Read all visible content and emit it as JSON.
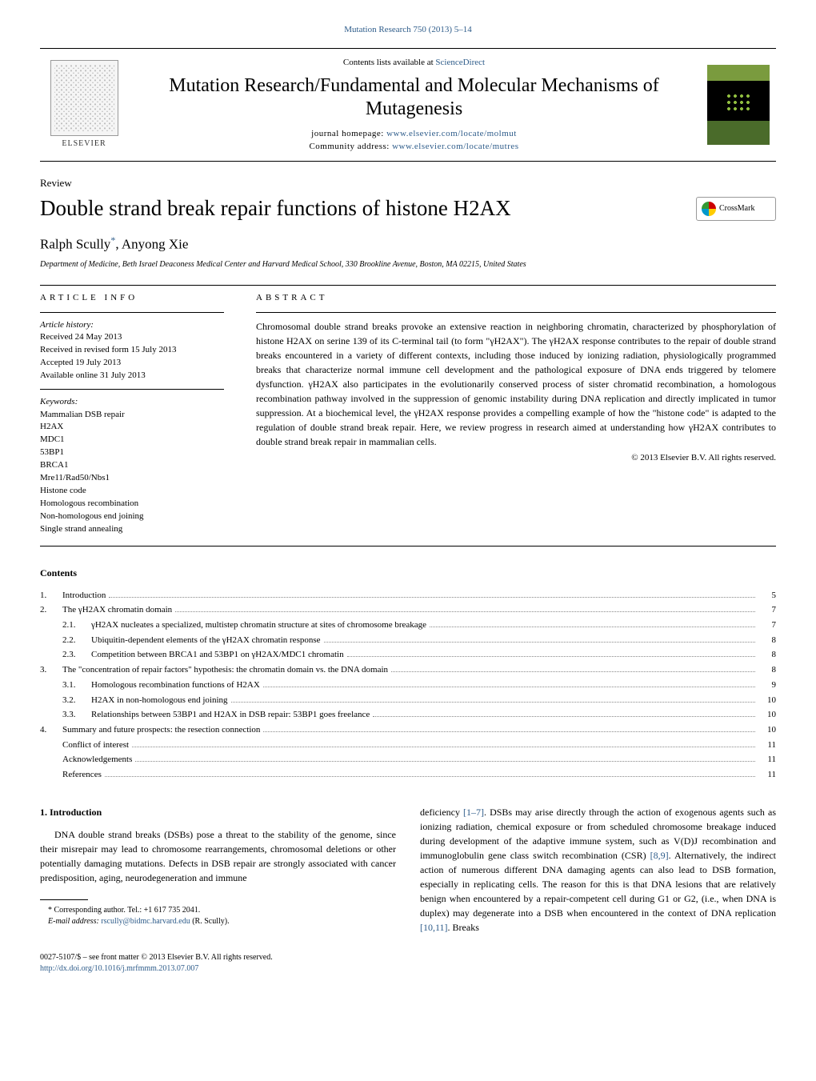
{
  "journal_ref": "Mutation Research 750 (2013) 5–14",
  "header": {
    "contents_available": "Contents lists available at",
    "sciencedirect": "ScienceDirect",
    "journal_title": "Mutation Research/Fundamental and Molecular Mechanisms of Mutagenesis",
    "homepage_label": "journal homepage:",
    "homepage_url": "www.elsevier.com/locate/molmut",
    "community_label": "Community address:",
    "community_url": "www.elsevier.com/locate/mutres",
    "publisher": "ELSEVIER"
  },
  "article_type": "Review",
  "title": "Double strand break repair functions of histone H2AX",
  "crossmark": "CrossMark",
  "authors": "Ralph Scully",
  "author2": ", Anyong Xie",
  "affiliation": "Department of Medicine, Beth Israel Deaconess Medical Center and Harvard Medical School, 330 Brookline Avenue, Boston, MA 02215, United States",
  "info_label": "ARTICLE INFO",
  "abstract_label": "ABSTRACT",
  "history": {
    "label": "Article history:",
    "received": "Received 24 May 2013",
    "revised": "Received in revised form 15 July 2013",
    "accepted": "Accepted 19 July 2013",
    "online": "Available online 31 July 2013"
  },
  "keywords": {
    "label": "Keywords:",
    "items": [
      "Mammalian DSB repair",
      "H2AX",
      "MDC1",
      "53BP1",
      "BRCA1",
      "Mre11/Rad50/Nbs1",
      "Histone code",
      "Homologous recombination",
      "Non-homologous end joining",
      "Single strand annealing"
    ]
  },
  "abstract": "Chromosomal double strand breaks provoke an extensive reaction in neighboring chromatin, characterized by phosphorylation of histone H2AX on serine 139 of its C-terminal tail (to form \"γH2AX\"). The γH2AX response contributes to the repair of double strand breaks encountered in a variety of different contexts, including those induced by ionizing radiation, physiologically programmed breaks that characterize normal immune cell development and the pathological exposure of DNA ends triggered by telomere dysfunction. γH2AX also participates in the evolutionarily conserved process of sister chromatid recombination, a homologous recombination pathway involved in the suppression of genomic instability during DNA replication and directly implicated in tumor suppression. At a biochemical level, the γH2AX response provides a compelling example of how the \"histone code\" is adapted to the regulation of double strand break repair. Here, we review progress in research aimed at understanding how γH2AX contributes to double strand break repair in mammalian cells.",
  "copyright": "© 2013 Elsevier B.V. All rights reserved.",
  "contents_title": "Contents",
  "toc": [
    {
      "num": "1.",
      "text": "Introduction",
      "page": "5",
      "level": 0
    },
    {
      "num": "2.",
      "text": "The γH2AX chromatin domain",
      "page": "7",
      "level": 0
    },
    {
      "num": "2.1.",
      "text": "γH2AX nucleates a specialized, multistep chromatin structure at sites of chromosome breakage",
      "page": "7",
      "level": 1
    },
    {
      "num": "2.2.",
      "text": "Ubiquitin-dependent elements of the γH2AX chromatin response",
      "page": "8",
      "level": 1
    },
    {
      "num": "2.3.",
      "text": "Competition between BRCA1 and 53BP1 on γH2AX/MDC1 chromatin",
      "page": "8",
      "level": 1
    },
    {
      "num": "3.",
      "text": "The \"concentration of repair factors\" hypothesis: the chromatin domain vs. the DNA domain",
      "page": "8",
      "level": 0
    },
    {
      "num": "3.1.",
      "text": "Homologous recombination functions of H2AX",
      "page": "9",
      "level": 1
    },
    {
      "num": "3.2.",
      "text": "H2AX in non-homologous end joining",
      "page": "10",
      "level": 1
    },
    {
      "num": "3.3.",
      "text": "Relationships between 53BP1 and H2AX in DSB repair: 53BP1 goes freelance",
      "page": "10",
      "level": 1
    },
    {
      "num": "4.",
      "text": "Summary and future prospects: the resection connection",
      "page": "10",
      "level": 0
    },
    {
      "num": "",
      "text": "Conflict of interest",
      "page": "11",
      "level": 2
    },
    {
      "num": "",
      "text": "Acknowledgements",
      "page": "11",
      "level": 2
    },
    {
      "num": "",
      "text": "References",
      "page": "11",
      "level": 2
    }
  ],
  "intro_heading": "1.  Introduction",
  "intro_p1": "DNA double strand breaks (DSBs) pose a threat to the stability of the genome, since their misrepair may lead to chromosome rearrangements, chromosomal deletions or other potentially damaging mutations. Defects in DSB repair are strongly associated with cancer predisposition, aging, neurodegeneration and immune",
  "col2_p1_a": "deficiency ",
  "col2_ref1": "[1–7]",
  "col2_p1_b": ". DSBs may arise directly through the action of exogenous agents such as ionizing radiation, chemical exposure or from scheduled chromosome breakage induced during development of the adaptive immune system, such as V(D)J recombination and immunoglobulin gene class switch recombination (CSR) ",
  "col2_ref2": "[8,9]",
  "col2_p1_c": ". Alternatively, the indirect action of numerous different DNA damaging agents can also lead to DSB formation, especially in replicating cells. The reason for this is that DNA lesions that are relatively benign when encountered by a repair-competent cell during G1 or G2, (i.e., when DNA is duplex) may degenerate into a DSB when encountered in the context of DNA replication ",
  "col2_ref3": "[10,11]",
  "col2_p1_d": ". Breaks",
  "corresponding": "Corresponding author. Tel.: +1 617 735 2041.",
  "email_label": "E-mail address:",
  "email": "rscully@bidmc.harvard.edu",
  "email_who": "(R. Scully).",
  "issn": "0027-5107/$ – see front matter © 2013 Elsevier B.V. All rights reserved.",
  "doi": "http://dx.doi.org/10.1016/j.mrfmmm.2013.07.007",
  "colors": {
    "link": "#2e5c8a",
    "text": "#000000",
    "background": "#ffffff"
  }
}
